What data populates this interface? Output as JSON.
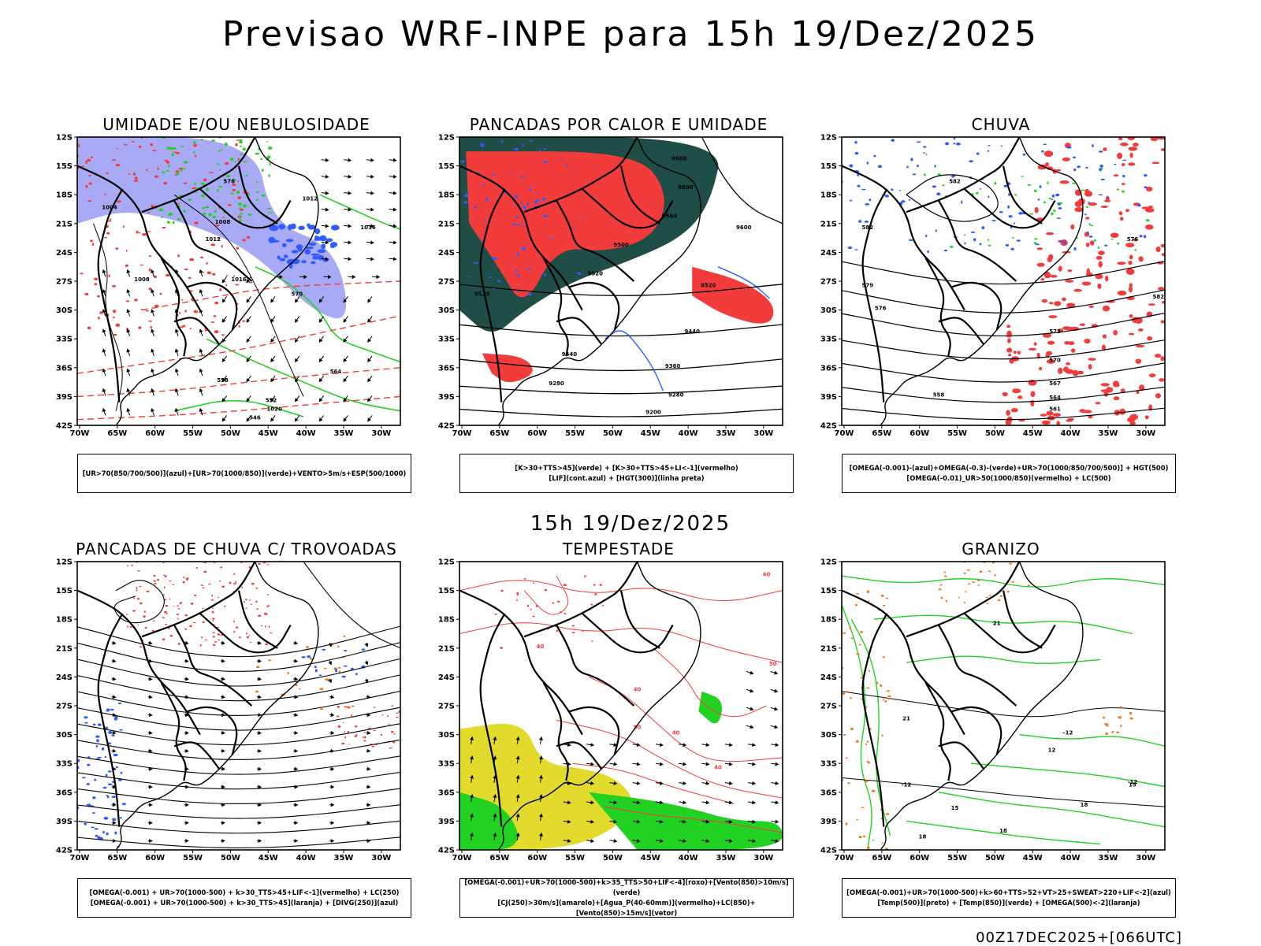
{
  "title": "Previsao WRF-INPE  para 15h 19/Dez/2025",
  "mid_title": "15h 19/Dez/2025",
  "footer": "00Z17DEC2025+[066UTC]",
  "axes": {
    "lat_ticks": [
      "12S",
      "15S",
      "18S",
      "21S",
      "24S",
      "27S",
      "30S",
      "33S",
      "36S",
      "39S",
      "42S"
    ],
    "lon_ticks": [
      "70W",
      "65W",
      "60W",
      "55W",
      "50W",
      "45W",
      "40W",
      "35W",
      "30W"
    ]
  },
  "colors": {
    "red": "#f23c3c",
    "green": "#22d222",
    "blue": "#2f5cff",
    "lavender": "#a9aaf5",
    "darkgreen": "#1f4e46",
    "yellow": "#e2db2e",
    "orange": "#ee7a20",
    "purple": "#b020b0",
    "black": "#000000"
  },
  "panels": [
    {
      "title": "UMIDADE E/OU NEBULOSIDADE",
      "legend": [
        "[UR>70(850/700/500)](azul)+[UR>70(1000/850)](verde)+VENTO>5m/s+ESP(500/1000)"
      ],
      "contour_labels": [
        "1004",
        "1008",
        "1012",
        "1016",
        "1020",
        "1008",
        "1012",
        "1016",
        "576",
        "570",
        "564",
        "558",
        "552",
        "546"
      ]
    },
    {
      "title": "PANCADAS POR CALOR E UMIDADE",
      "legend": [
        "[K>30+TTS>45](verde) + [K>30+TTS>45+LI<-1](vermelho)",
        "[LIF](cont.azul) + [HGT(300)](linha preta)"
      ],
      "contour_labels": [
        "9600",
        "9600",
        "9560",
        "9600",
        "9500",
        "9520",
        "9520",
        "9520",
        "9440",
        "9440",
        "9360",
        "9280",
        "9280",
        "9200"
      ]
    },
    {
      "title": "CHUVA",
      "legend": [
        "[OMEGA(-0.001)-(azul)+OMEGA(-0.3)-(verde)+UR>70(1000/850/700/500)] + HGT(500)",
        "[OMEGA(-0.01)_UR>50(1000/850)(vermelho) + LC(500)"
      ],
      "contour_labels": [
        "582",
        "582",
        "576",
        "573",
        "570",
        "567",
        "564",
        "561",
        "558",
        "579",
        "582",
        "576"
      ]
    },
    {
      "title": "PANCADAS DE CHUVA C/ TROVOADAS",
      "legend": [
        "[OMEGA(-0.001) + UR>70(1000-500) + k>30_TTS>45+LIF<-1](vermelho) + LC(250)",
        "[OMEGA(-0.001) + UR>70(1000-500) + k>30_TTS>45](laranja) + [DIVG(250)](azul)"
      ],
      "contour_labels": []
    },
    {
      "title": "TEMPESTADE",
      "legend": [
        "[OMEGA(-0.001)+UR>70(1000-500)+k>35_TTS>50+LIF<-4](roxo)+[Vento(850)>10m/s](verde)",
        "[CJ(250)>30m/s](amarelo)+[Agua_P(40-60mm)](vermelho)+LC(850)+[Vento(850)>15m/s](vetor)"
      ],
      "contour_labels": [
        "40",
        "40",
        "40",
        "40",
        "50",
        "50",
        "40"
      ]
    },
    {
      "title": "GRANIZO",
      "legend": [
        "[OMEGA(-0.001)+UR>70(1000-500)+k>60+TTS>52+VT>25+SWEAT>220+LIF<-2](azul)",
        "[Temp(500)](preto) + [Temp(850)](verde) + [OMEGA(500)<-2](laranja)"
      ],
      "contour_labels": [
        "-12",
        "-12",
        "-12",
        "12",
        "15",
        "15",
        "18",
        "18",
        "18",
        "21",
        "21"
      ]
    }
  ]
}
